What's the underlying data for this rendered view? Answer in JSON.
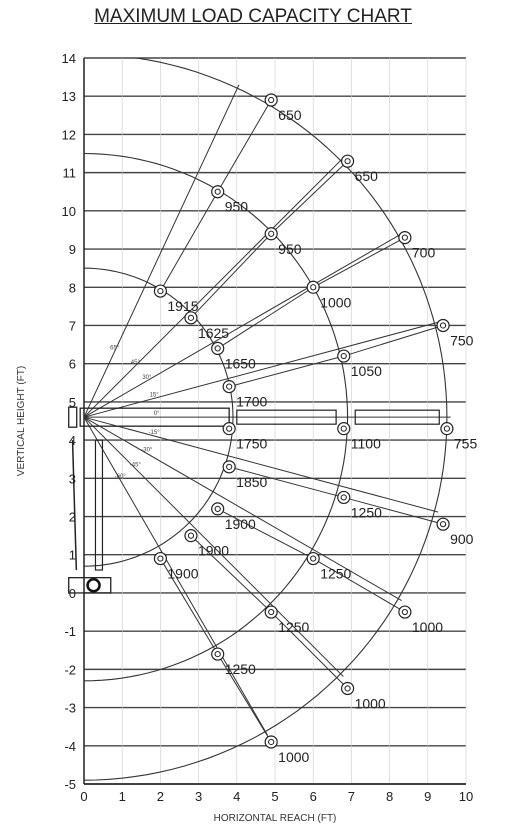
{
  "chart_data": {
    "type": "scatter",
    "title": "MAXIMUM LOAD CAPACITY CHART",
    "xlabel": "HORIZONTAL REACH (FT)",
    "ylabel": "VERTICAL HEIGHT (FT)",
    "xlim": [
      0,
      10
    ],
    "ylim": [
      -5,
      14
    ],
    "x_ticks": [
      "0",
      "1",
      "2",
      "3",
      "4",
      "5",
      "6",
      "7",
      "8",
      "9",
      "10"
    ],
    "y_ticks": [
      "-5",
      "-4",
      "-3",
      "-2",
      "-1",
      "0",
      "1",
      "2",
      "3",
      "4",
      "5",
      "6",
      "7",
      "8",
      "9",
      "10",
      "11",
      "12",
      "13",
      "14"
    ],
    "grid": "horizontal",
    "pivot": [
      0,
      4.6
    ],
    "boom_angles": [
      "65°",
      "45°",
      "30°",
      "15°",
      "0°",
      "-15°",
      "-30°",
      "-45°",
      "-60°"
    ],
    "points": [
      {
        "x": 2.0,
        "y": 7.9,
        "label": "1915"
      },
      {
        "x": 2.8,
        "y": 7.2,
        "label": "1625"
      },
      {
        "x": 3.5,
        "y": 6.4,
        "label": "1650"
      },
      {
        "x": 3.8,
        "y": 5.4,
        "label": "1700"
      },
      {
        "x": 3.8,
        "y": 4.3,
        "label": "1750"
      },
      {
        "x": 3.8,
        "y": 3.3,
        "label": "1850"
      },
      {
        "x": 3.5,
        "y": 2.2,
        "label": "1900"
      },
      {
        "x": 2.8,
        "y": 1.5,
        "label": "1900"
      },
      {
        "x": 2.0,
        "y": 0.9,
        "label": "1900"
      },
      {
        "x": 3.5,
        "y": 10.5,
        "label": "950"
      },
      {
        "x": 4.9,
        "y": 9.4,
        "label": "950"
      },
      {
        "x": 6.0,
        "y": 8.0,
        "label": "1000"
      },
      {
        "x": 6.8,
        "y": 6.2,
        "label": "1050"
      },
      {
        "x": 6.8,
        "y": 4.3,
        "label": "1100"
      },
      {
        "x": 6.8,
        "y": 2.5,
        "label": "1250"
      },
      {
        "x": 6.0,
        "y": 0.9,
        "label": "1250"
      },
      {
        "x": 4.9,
        "y": -0.5,
        "label": "1250"
      },
      {
        "x": 3.5,
        "y": -1.6,
        "label": "1250"
      },
      {
        "x": 4.9,
        "y": 12.9,
        "label": "650"
      },
      {
        "x": 6.9,
        "y": 11.3,
        "label": "650"
      },
      {
        "x": 8.4,
        "y": 9.3,
        "label": "700"
      },
      {
        "x": 9.4,
        "y": 7.0,
        "label": "750"
      },
      {
        "x": 9.5,
        "y": 4.3,
        "label": "755"
      },
      {
        "x": 9.4,
        "y": 1.8,
        "label": "900"
      },
      {
        "x": 8.4,
        "y": -0.5,
        "label": "1000"
      },
      {
        "x": 6.9,
        "y": -2.5,
        "label": "1000"
      },
      {
        "x": 4.9,
        "y": -3.9,
        "label": "1000"
      }
    ]
  }
}
